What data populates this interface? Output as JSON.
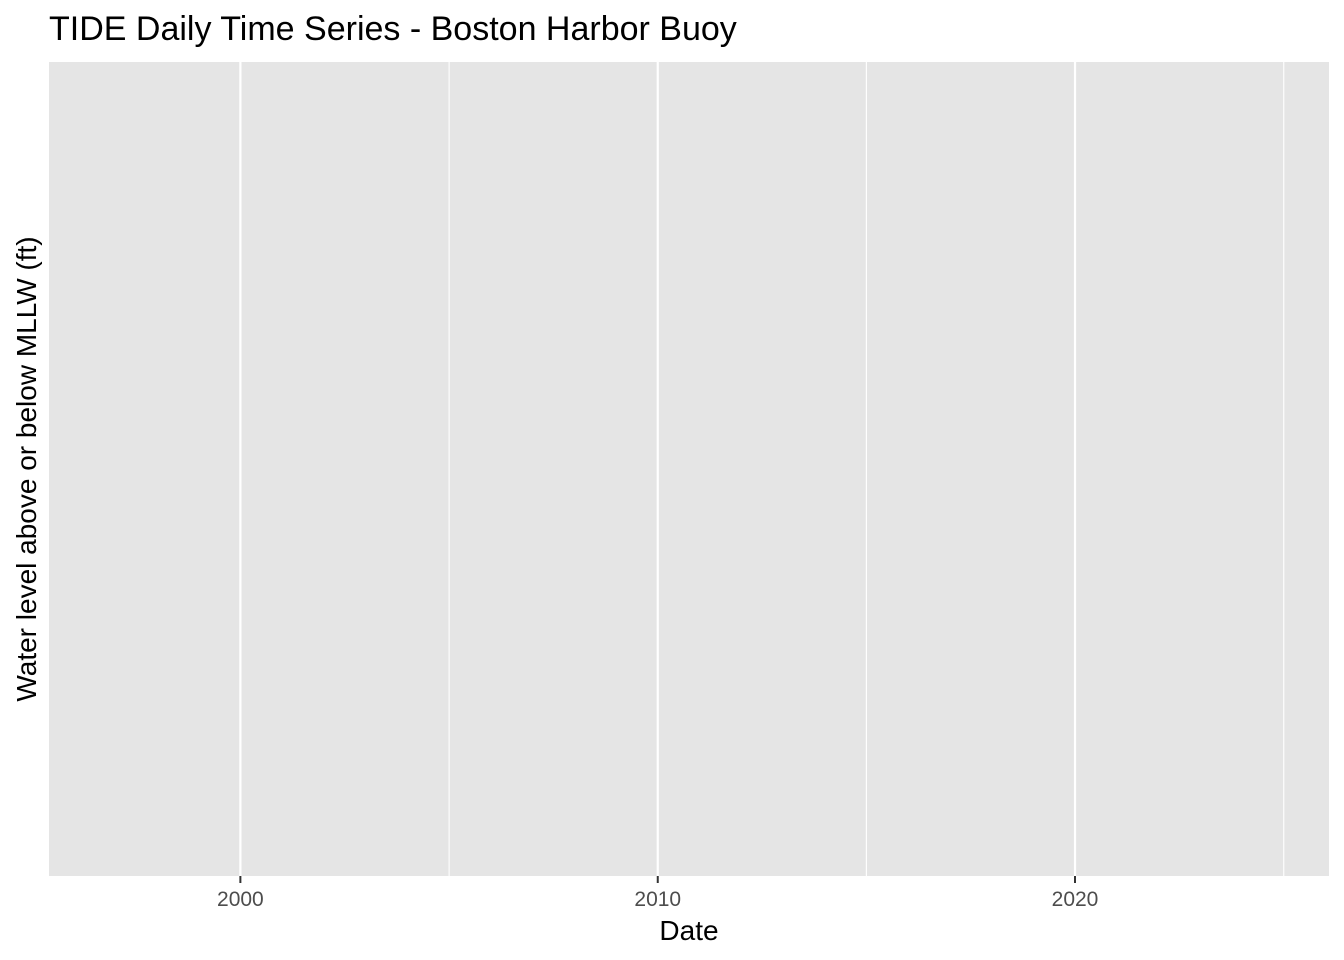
{
  "chart_data": {
    "type": "line",
    "title": "TIDE Daily Time Series - Boston Harbor Buoy",
    "xlabel": "Date",
    "ylabel": "Water level above or below MLLW (ft)",
    "x_axis_kind": "date",
    "xlim": [
      "1995-06-01",
      "2026-02-01"
    ],
    "x_ticks": [
      "2000",
      "2010",
      "2020"
    ],
    "x_minor_ticks": [
      "1995",
      "2005",
      "2015",
      "2025"
    ],
    "y_ticks": [],
    "series": [],
    "grid": true,
    "legend": "none",
    "colors": {
      "panel_background": "#e5e5e5",
      "grid_line": "#ffffff",
      "tick_label": "#4d4d4d"
    }
  }
}
